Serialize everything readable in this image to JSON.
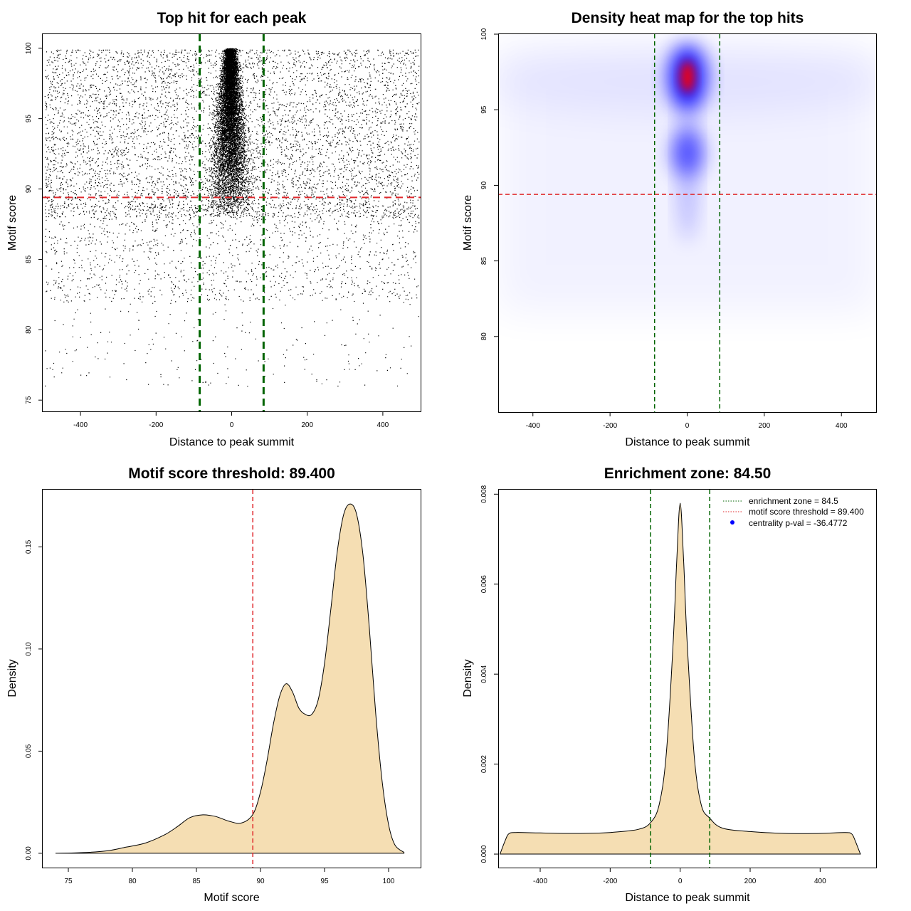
{
  "colors": {
    "zone_line": "#006400",
    "threshold_line": "#e0282c",
    "density_fill": "#f5deb3",
    "scatter_points": "#000000",
    "heat_low": "#ffffff",
    "heat_mid": "#0000ff",
    "heat_high": "#ff0000",
    "legend_point": "#0000ff"
  },
  "icons": {
    "legend_dotted_line": "dotted-line-icon",
    "legend_point": "filled-circle-icon"
  },
  "chart_data": [
    {
      "type": "scatter",
      "title": "Top hit for each peak",
      "xlabel": "Distance to peak summit",
      "ylabel": "Motif score",
      "xlim": [
        -500,
        500
      ],
      "ylim": [
        74.2,
        101
      ],
      "xticks": [
        "-400",
        "-200",
        "0",
        "200",
        "400"
      ],
      "yticks": [
        "75",
        "80",
        "85",
        "90",
        "95",
        "100"
      ],
      "points_note": "thousands of points; x roughly uniform in [-495, 495], scores mostly 88-100, strongly concentrated near x = 0 with score 90-100",
      "vlines": [
        -84.5,
        84.5
      ],
      "hline": 89.4
    },
    {
      "type": "heatmap",
      "title": "Density heat map for the top hits",
      "xlabel": "Distance to peak summit",
      "ylabel": "Motif score",
      "xlim": [
        -490,
        490
      ],
      "ylim": [
        75,
        100
      ],
      "xticks": [
        "-400",
        "-200",
        "0",
        "200",
        "400"
      ],
      "yticks": [
        "80",
        "85",
        "90",
        "95",
        "100"
      ],
      "hotspots": [
        {
          "x": 0,
          "y": 97.2,
          "intensity": 1.0
        },
        {
          "x": 0,
          "y": 92.2,
          "intensity": 0.55
        }
      ],
      "vlines": [
        -84.5,
        84.5
      ],
      "hline": 89.4
    },
    {
      "type": "area",
      "title": "Motif score threshold: 89.400",
      "xlabel": "Motif score",
      "ylabel": "Density",
      "xlim": [
        73,
        102.5
      ],
      "ylim": [
        -0.007,
        0.178
      ],
      "xticks": [
        "75",
        "80",
        "85",
        "90",
        "95",
        "100"
      ],
      "yticks": [
        "0.00",
        "0.05",
        "0.10",
        "0.15"
      ],
      "x": [
        74,
        76,
        78,
        79.5,
        81,
        82.5,
        83.5,
        84.5,
        85.5,
        86.5,
        87.5,
        88.5,
        89.4,
        90,
        90.5,
        91,
        91.5,
        92,
        92.5,
        93,
        93.5,
        94,
        94.5,
        95,
        95.5,
        96,
        96.5,
        97,
        97.5,
        98,
        98.5,
        99,
        99.5,
        100,
        100.5,
        101.2
      ],
      "y": [
        0,
        0.0003,
        0.0012,
        0.003,
        0.005,
        0.009,
        0.013,
        0.0175,
        0.0188,
        0.018,
        0.0158,
        0.0148,
        0.019,
        0.03,
        0.045,
        0.063,
        0.077,
        0.083,
        0.079,
        0.071,
        0.068,
        0.068,
        0.075,
        0.093,
        0.12,
        0.148,
        0.166,
        0.171,
        0.166,
        0.146,
        0.11,
        0.068,
        0.035,
        0.014,
        0.004,
        0.0005
      ],
      "vline": 89.4
    },
    {
      "type": "area",
      "title": "Enrichment zone: 84.50",
      "xlabel": "Distance to peak summit",
      "ylabel": "Density",
      "xlim": [
        -520,
        560
      ],
      "ylim": [
        -0.0003,
        0.0081
      ],
      "xticks": [
        "-400",
        "-200",
        "0",
        "200",
        "400"
      ],
      "yticks": [
        "0.000",
        "0.002",
        "0.004",
        "0.006",
        "0.008"
      ],
      "x": [
        -515,
        -500,
        -490,
        -470,
        -400,
        -300,
        -200,
        -120,
        -84.5,
        -60,
        -40,
        -20,
        -10,
        0,
        10,
        20,
        40,
        60,
        84.5,
        120,
        200,
        300,
        400,
        470,
        490,
        500,
        515
      ],
      "y": [
        0,
        0.0003,
        0.00045,
        0.00048,
        0.00047,
        0.00046,
        0.00048,
        0.00055,
        0.0007,
        0.0011,
        0.0022,
        0.0047,
        0.0065,
        0.0078,
        0.0065,
        0.0047,
        0.0022,
        0.0011,
        0.0008,
        0.00058,
        0.0005,
        0.00046,
        0.00046,
        0.00048,
        0.00045,
        0.0003,
        0
      ],
      "vlines": [
        -84.5,
        84.5
      ],
      "legend": {
        "position": "top-right",
        "items": [
          {
            "label": "enrichment zone = 84.5",
            "color": "#006400",
            "kind": "dotted-line"
          },
          {
            "label": "motif score threshold = 89.400",
            "color": "#e0282c",
            "kind": "dotted-line"
          },
          {
            "label": "centrality p-val = -36.4772",
            "color": "#0000ff",
            "kind": "point"
          }
        ]
      }
    }
  ]
}
